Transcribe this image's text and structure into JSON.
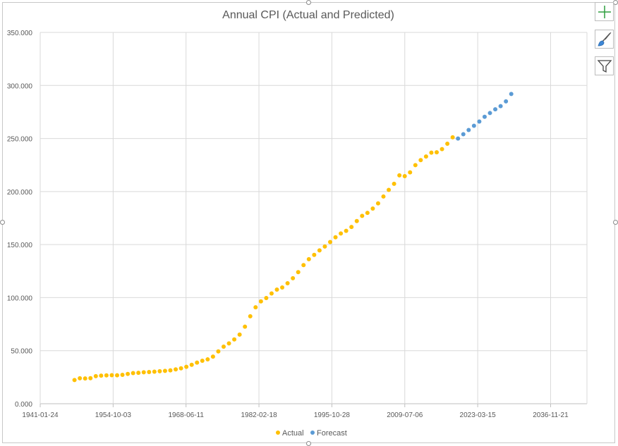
{
  "chart_data": {
    "type": "scatter",
    "title": "Annual CPI (Actual and Predicted)",
    "xlabel": "",
    "ylabel": "",
    "x_axis": {
      "scale": "date",
      "min": "1941-01-24",
      "max": "2043-09-18",
      "tick_labels": [
        "1941-01-24",
        "1954-10-03",
        "1968-06-11",
        "1982-02-18",
        "1995-10-28",
        "2009-07-06",
        "2023-03-15",
        "2036-11-21"
      ]
    },
    "y_axis": {
      "min": 0,
      "max": 350,
      "tick_labels": [
        "0.000",
        "50.000",
        "100.000",
        "150.000",
        "200.000",
        "250.000",
        "300.000",
        "350.000"
      ]
    },
    "grid": true,
    "legend_position": "bottom",
    "series": [
      {
        "name": "Actual",
        "color": "#FFC000",
        "x": [
          1947,
          1948,
          1949,
          1950,
          1951,
          1952,
          1953,
          1954,
          1955,
          1956,
          1957,
          1958,
          1959,
          1960,
          1961,
          1962,
          1963,
          1964,
          1965,
          1966,
          1967,
          1968,
          1969,
          1970,
          1971,
          1972,
          1973,
          1974,
          1975,
          1976,
          1977,
          1978,
          1979,
          1980,
          1981,
          1982,
          1983,
          1984,
          1985,
          1986,
          1987,
          1988,
          1989,
          1990,
          1991,
          1992,
          1993,
          1994,
          1995,
          1996,
          1997,
          1998,
          1999,
          2000,
          2001,
          2002,
          2003,
          2004,
          2005,
          2006,
          2007,
          2008,
          2009,
          2010,
          2011,
          2012,
          2013,
          2014,
          2015,
          2016,
          2017,
          2018
        ],
        "y": [
          22.3,
          24.0,
          23.8,
          24.1,
          26.0,
          26.5,
          26.7,
          26.9,
          26.8,
          27.2,
          28.1,
          28.9,
          29.1,
          29.6,
          29.9,
          30.2,
          30.6,
          31.0,
          31.5,
          32.4,
          33.4,
          34.8,
          36.7,
          38.8,
          40.5,
          41.8,
          44.4,
          49.3,
          53.8,
          56.9,
          60.6,
          65.2,
          72.6,
          82.4,
          90.9,
          96.5,
          99.6,
          103.9,
          107.6,
          109.6,
          113.6,
          118.3,
          124.0,
          130.7,
          136.2,
          140.3,
          144.5,
          148.2,
          152.4,
          156.9,
          160.5,
          163.0,
          166.6,
          172.2,
          177.1,
          179.9,
          184.0,
          188.9,
          195.3,
          201.6,
          207.3,
          215.3,
          214.5,
          218.1,
          224.9,
          229.6,
          233.0,
          236.7,
          237.0,
          240.0,
          245.1,
          251.1
        ]
      },
      {
        "name": "Forecast",
        "color": "#5B9BD5",
        "x": [
          2019,
          2020,
          2021,
          2022,
          2023,
          2024,
          2025,
          2026,
          2027,
          2028
        ],
        "y": [
          250.0,
          254.0,
          258.0,
          262.0,
          266.0,
          270.5,
          274.0,
          277.5,
          280.5,
          285.0
        ]
      }
    ]
  },
  "extra_forecast_point": {
    "x": 2029,
    "y": 292.0
  },
  "tools": {
    "add_icon": "plus-icon",
    "style_icon": "brush-icon",
    "filter_icon": "filter-icon"
  }
}
